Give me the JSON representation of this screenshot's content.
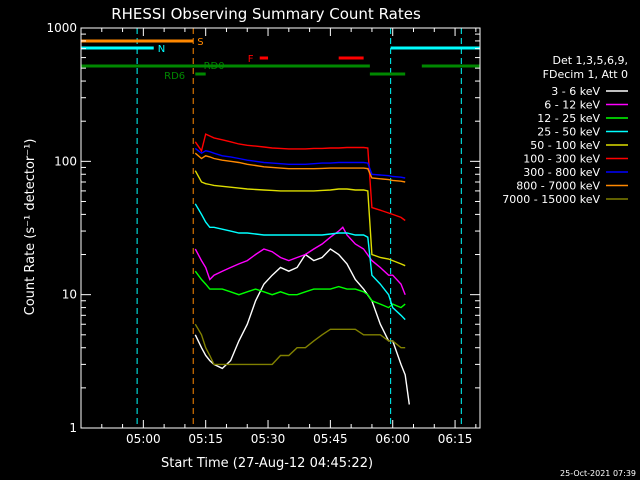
{
  "chart_data": {
    "type": "line",
    "title": "RHESSI Observing Summary Count Rates",
    "xlabel": "Start Time (27-Aug-12 04:45:22)",
    "ylabel": "Count Rate (s⁻¹ detector⁻¹)",
    "yscale": "log",
    "ylim": [
      1,
      1000
    ],
    "xlim_minutes": [
      0,
      96
    ],
    "x_ticks": [
      {
        "m": 15,
        "label": "05:00"
      },
      {
        "m": 30,
        "label": "05:15"
      },
      {
        "m": 45,
        "label": "05:30"
      },
      {
        "m": 60,
        "label": "05:45"
      },
      {
        "m": 75,
        "label": "06:00"
      },
      {
        "m": 90,
        "label": "06:15"
      }
    ],
    "y_ticks": [
      {
        "v": 1,
        "label": "1"
      },
      {
        "v": 10,
        "label": "10"
      },
      {
        "v": 100,
        "label": "100"
      },
      {
        "v": 1000,
        "label": "1000"
      }
    ],
    "legend_header": [
      "Det 1,3,5,6,9,",
      "FDecim 1, Att 0"
    ],
    "series": [
      {
        "name": "3 - 6 keV",
        "color": "#ffffff",
        "points": [
          [
            27.5,
            5
          ],
          [
            29,
            4
          ],
          [
            30,
            3.5
          ],
          [
            31,
            3.2
          ],
          [
            32,
            3
          ],
          [
            34,
            2.8
          ],
          [
            36,
            3.2
          ],
          [
            38,
            4.5
          ],
          [
            40,
            6
          ],
          [
            42,
            9
          ],
          [
            44,
            12
          ],
          [
            46,
            14
          ],
          [
            48,
            16
          ],
          [
            50,
            15
          ],
          [
            52,
            16
          ],
          [
            54,
            20
          ],
          [
            56,
            18
          ],
          [
            58,
            19
          ],
          [
            60,
            22
          ],
          [
            62,
            20
          ],
          [
            64,
            17
          ],
          [
            66,
            13
          ],
          [
            68,
            11
          ],
          [
            70,
            9
          ],
          [
            72,
            6
          ],
          [
            74,
            4.5
          ],
          [
            75,
            4.5
          ],
          [
            77,
            3
          ],
          [
            78,
            2.5
          ],
          [
            79,
            1.5
          ]
        ]
      },
      {
        "name": "6 - 12 keV",
        "color": "#ff00ff",
        "points": [
          [
            27.5,
            22
          ],
          [
            29,
            18
          ],
          [
            30,
            16
          ],
          [
            31,
            13
          ],
          [
            32,
            14
          ],
          [
            34,
            15
          ],
          [
            36,
            16
          ],
          [
            38,
            17
          ],
          [
            40,
            18
          ],
          [
            42,
            20
          ],
          [
            44,
            22
          ],
          [
            46,
            21
          ],
          [
            48,
            19
          ],
          [
            50,
            18
          ],
          [
            52,
            19
          ],
          [
            54,
            20
          ],
          [
            56,
            22
          ],
          [
            58,
            24
          ],
          [
            60,
            27
          ],
          [
            62,
            30
          ],
          [
            63,
            32
          ],
          [
            64,
            28
          ],
          [
            66,
            24
          ],
          [
            68,
            22
          ],
          [
            70,
            18
          ],
          [
            72,
            16
          ],
          [
            74,
            14
          ],
          [
            75,
            14
          ],
          [
            77,
            12
          ],
          [
            78,
            10
          ]
        ]
      },
      {
        "name": "12 - 25 keV",
        "color": "#00ff00",
        "points": [
          [
            27.5,
            15
          ],
          [
            29,
            13
          ],
          [
            30,
            12
          ],
          [
            31,
            11
          ],
          [
            32,
            11
          ],
          [
            34,
            11
          ],
          [
            36,
            10.5
          ],
          [
            38,
            10
          ],
          [
            40,
            10.5
          ],
          [
            42,
            11
          ],
          [
            44,
            10.5
          ],
          [
            46,
            10
          ],
          [
            48,
            10.5
          ],
          [
            50,
            10
          ],
          [
            52,
            10
          ],
          [
            54,
            10.5
          ],
          [
            56,
            11
          ],
          [
            58,
            11
          ],
          [
            60,
            11
          ],
          [
            62,
            11.5
          ],
          [
            64,
            11
          ],
          [
            66,
            11
          ],
          [
            68,
            10.5
          ],
          [
            69,
            10
          ],
          [
            70,
            9
          ],
          [
            72,
            8.5
          ],
          [
            74,
            8
          ],
          [
            75,
            8.5
          ],
          [
            77,
            8
          ],
          [
            78,
            8.5
          ]
        ]
      },
      {
        "name": "25 - 50 keV",
        "color": "#00ffff",
        "points": [
          [
            27.5,
            48
          ],
          [
            29,
            40
          ],
          [
            30,
            35
          ],
          [
            31,
            32
          ],
          [
            32,
            32
          ],
          [
            34,
            31
          ],
          [
            36,
            30
          ],
          [
            38,
            29
          ],
          [
            40,
            29
          ],
          [
            42,
            28.5
          ],
          [
            44,
            28
          ],
          [
            46,
            28
          ],
          [
            48,
            28
          ],
          [
            50,
            28
          ],
          [
            52,
            28
          ],
          [
            54,
            28
          ],
          [
            56,
            28
          ],
          [
            58,
            28
          ],
          [
            60,
            28.5
          ],
          [
            62,
            29
          ],
          [
            64,
            29
          ],
          [
            66,
            28
          ],
          [
            68,
            28
          ],
          [
            69,
            27
          ],
          [
            70,
            14
          ],
          [
            72,
            12
          ],
          [
            74,
            10
          ],
          [
            75,
            8
          ],
          [
            77,
            7
          ],
          [
            78,
            6.5
          ]
        ]
      },
      {
        "name": "50 - 100 keV",
        "color": "#dddd00",
        "points": [
          [
            27.5,
            85
          ],
          [
            29,
            70
          ],
          [
            30,
            68
          ],
          [
            31,
            67
          ],
          [
            32,
            66
          ],
          [
            34,
            65
          ],
          [
            36,
            64
          ],
          [
            38,
            63
          ],
          [
            40,
            62
          ],
          [
            42,
            61.5
          ],
          [
            44,
            61
          ],
          [
            46,
            60.5
          ],
          [
            48,
            60
          ],
          [
            50,
            60
          ],
          [
            52,
            60
          ],
          [
            54,
            60
          ],
          [
            56,
            60
          ],
          [
            58,
            60.5
          ],
          [
            60,
            61
          ],
          [
            62,
            62
          ],
          [
            64,
            62
          ],
          [
            66,
            61
          ],
          [
            68,
            61
          ],
          [
            69,
            60
          ],
          [
            70,
            20
          ],
          [
            72,
            19
          ],
          [
            74,
            18.5
          ],
          [
            75,
            18
          ],
          [
            77,
            17
          ],
          [
            78,
            16.5
          ]
        ]
      },
      {
        "name": "100 - 300 keV",
        "color": "#ff0000",
        "points": [
          [
            27.5,
            140
          ],
          [
            29,
            120
          ],
          [
            30,
            160
          ],
          [
            31,
            155
          ],
          [
            32,
            150
          ],
          [
            34,
            145
          ],
          [
            36,
            140
          ],
          [
            38,
            135
          ],
          [
            40,
            132
          ],
          [
            42,
            130
          ],
          [
            44,
            128
          ],
          [
            46,
            126
          ],
          [
            48,
            125
          ],
          [
            50,
            124
          ],
          [
            52,
            124
          ],
          [
            54,
            124
          ],
          [
            56,
            125
          ],
          [
            58,
            125
          ],
          [
            60,
            126
          ],
          [
            62,
            126
          ],
          [
            64,
            127
          ],
          [
            66,
            127
          ],
          [
            68,
            127
          ],
          [
            69,
            126
          ],
          [
            70,
            45
          ],
          [
            72,
            43
          ],
          [
            74,
            41
          ],
          [
            75,
            40
          ],
          [
            77,
            38
          ],
          [
            78,
            36
          ]
        ]
      },
      {
        "name": "300 - 800 keV",
        "color": "#0000ff",
        "points": [
          [
            27.5,
            125
          ],
          [
            29,
            115
          ],
          [
            30,
            120
          ],
          [
            31,
            118
          ],
          [
            32,
            115
          ],
          [
            34,
            110
          ],
          [
            36,
            108
          ],
          [
            38,
            105
          ],
          [
            40,
            102
          ],
          [
            42,
            100
          ],
          [
            44,
            98
          ],
          [
            46,
            97
          ],
          [
            48,
            96
          ],
          [
            50,
            95
          ],
          [
            52,
            95
          ],
          [
            54,
            95
          ],
          [
            56,
            96
          ],
          [
            58,
            97
          ],
          [
            60,
            97
          ],
          [
            62,
            98
          ],
          [
            64,
            98
          ],
          [
            66,
            98
          ],
          [
            68,
            98
          ],
          [
            69,
            97
          ],
          [
            70,
            80
          ],
          [
            72,
            79
          ],
          [
            74,
            78
          ],
          [
            75,
            77
          ],
          [
            77,
            76
          ],
          [
            78,
            75
          ]
        ]
      },
      {
        "name": "800 - 7000 keV",
        "color": "#ff8800",
        "points": [
          [
            27.5,
            115
          ],
          [
            29,
            105
          ],
          [
            30,
            110
          ],
          [
            31,
            108
          ],
          [
            32,
            105
          ],
          [
            34,
            102
          ],
          [
            36,
            100
          ],
          [
            38,
            98
          ],
          [
            40,
            95
          ],
          [
            42,
            93
          ],
          [
            44,
            91
          ],
          [
            46,
            90
          ],
          [
            48,
            89
          ],
          [
            50,
            88
          ],
          [
            52,
            88
          ],
          [
            54,
            88
          ],
          [
            56,
            88
          ],
          [
            58,
            88.5
          ],
          [
            60,
            89
          ],
          [
            62,
            89
          ],
          [
            64,
            89
          ],
          [
            66,
            89
          ],
          [
            68,
            89
          ],
          [
            69,
            88
          ],
          [
            70,
            75
          ],
          [
            72,
            74
          ],
          [
            74,
            73
          ],
          [
            75,
            72
          ],
          [
            77,
            71
          ],
          [
            78,
            70
          ]
        ]
      },
      {
        "name": "7000 - 15000 keV",
        "color": "#808000",
        "points": [
          [
            27.5,
            6
          ],
          [
            29,
            5
          ],
          [
            30,
            4
          ],
          [
            31,
            3.5
          ],
          [
            32,
            3
          ],
          [
            34,
            3
          ],
          [
            36,
            3
          ],
          [
            38,
            3
          ],
          [
            40,
            3
          ],
          [
            42,
            3
          ],
          [
            44,
            3
          ],
          [
            46,
            3
          ],
          [
            48,
            3.5
          ],
          [
            50,
            3.5
          ],
          [
            52,
            4
          ],
          [
            54,
            4
          ],
          [
            56,
            4.5
          ],
          [
            58,
            5
          ],
          [
            60,
            5.5
          ],
          [
            62,
            5.5
          ],
          [
            64,
            5.5
          ],
          [
            66,
            5.5
          ],
          [
            68,
            5
          ],
          [
            69,
            5
          ],
          [
            70,
            5
          ],
          [
            72,
            5
          ],
          [
            74,
            4.5
          ],
          [
            75,
            4.5
          ],
          [
            77,
            4
          ],
          [
            78,
            4
          ]
        ]
      }
    ],
    "vertical_markers": [
      {
        "m": 13.5,
        "color": "#00ffff"
      },
      {
        "m": 27,
        "color": "#ff8800"
      },
      {
        "m": 74.5,
        "color": "#00ffff"
      },
      {
        "m": 91.5,
        "color": "#00ffff"
      }
    ],
    "state_bars": [
      {
        "label": "S",
        "color": "#ff8800",
        "row": "top1",
        "from": 0,
        "to": 27
      },
      {
        "label": "N",
        "color": "#00ffff",
        "row": "top2",
        "from": 0,
        "to": 17.5
      },
      {
        "label": "",
        "color": "#00ffff",
        "row": "top2",
        "from": 74.5,
        "to": 96
      },
      {
        "label": "F",
        "color": "#ff0000",
        "row": "top3",
        "from": 43,
        "to": 45
      },
      {
        "label": "",
        "color": "#ff0000",
        "row": "top3",
        "from": 62,
        "to": 68
      },
      {
        "label": "RD0",
        "color": "#008800",
        "row": "top4",
        "from": 0,
        "to": 69.5
      },
      {
        "label": "",
        "color": "#008800",
        "row": "top4",
        "from": 82,
        "to": 96
      },
      {
        "label": "RD6",
        "color": "#008800",
        "row": "top5",
        "from": 27.5,
        "to": 30
      },
      {
        "label": "",
        "color": "#008800",
        "row": "top5",
        "from": 69.5,
        "to": 78
      }
    ],
    "footer_stamp": "25-Oct-2021 07:39"
  }
}
